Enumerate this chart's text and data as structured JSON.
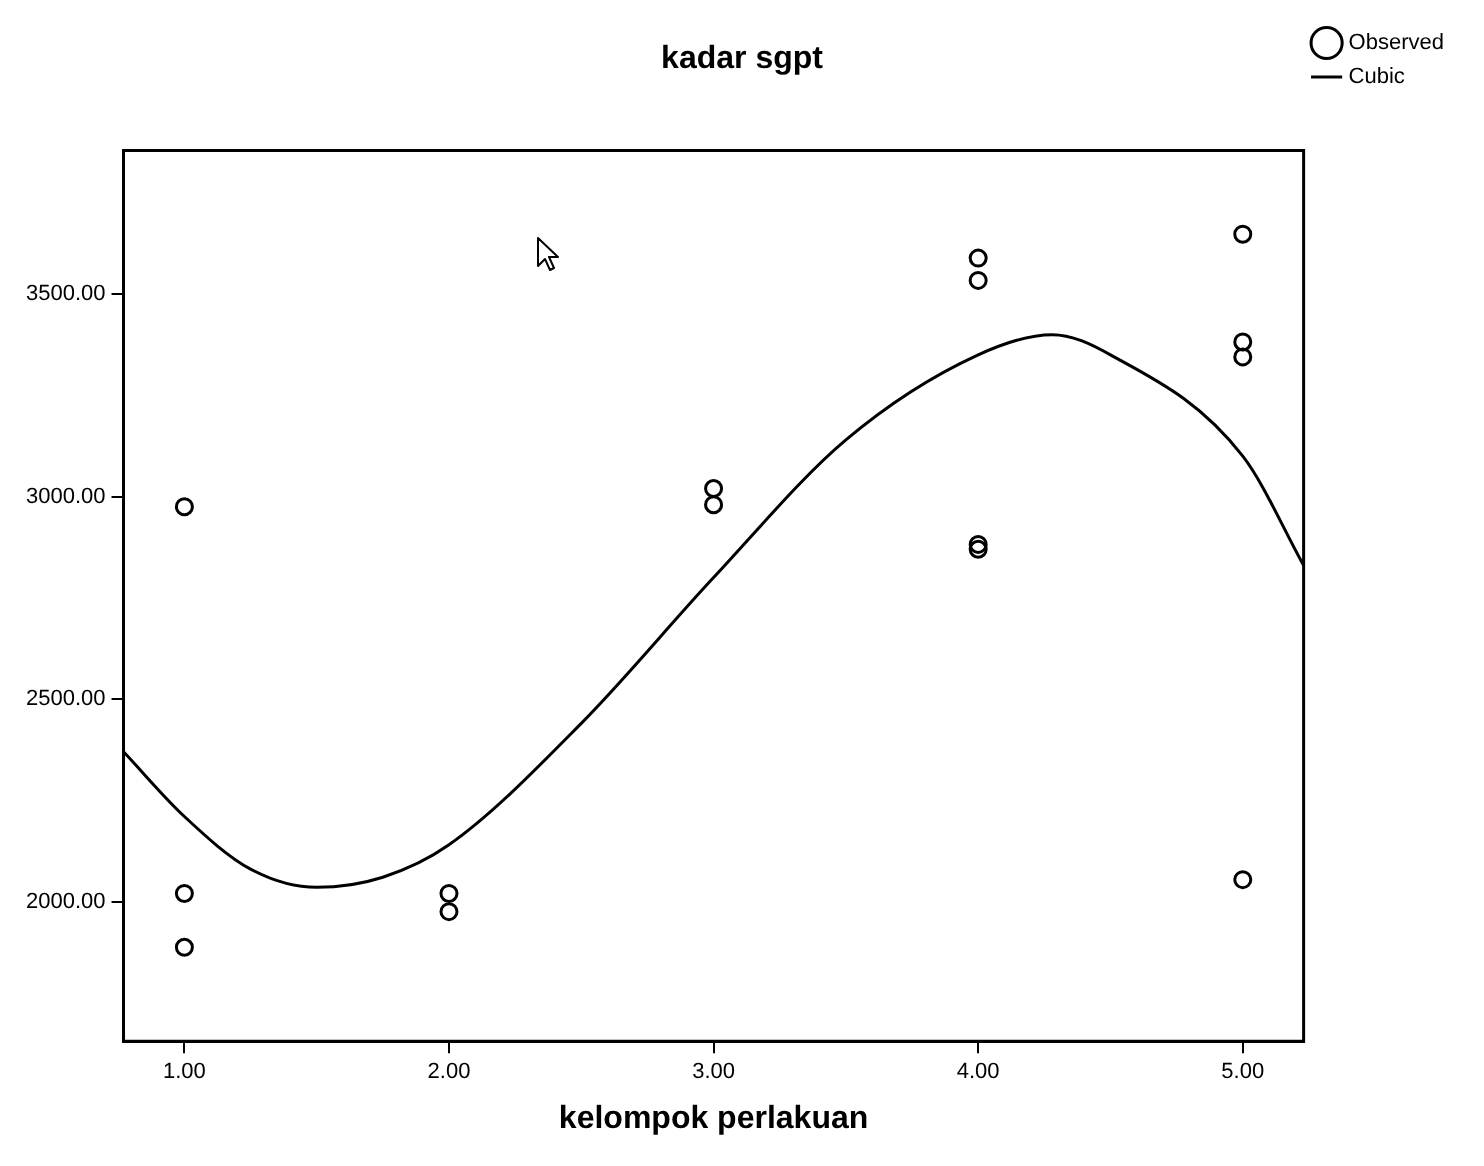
{
  "chart_data": {
    "type": "scatter",
    "title": "kadar sgpt",
    "xlabel": "kelompok perlakuan",
    "xlim": [
      0.77,
      5.23
    ],
    "ylim": [
      1655,
      3855
    ],
    "xticks": [
      {
        "value": 1,
        "label": "1.00"
      },
      {
        "value": 2,
        "label": "2.00"
      },
      {
        "value": 3,
        "label": "3.00"
      },
      {
        "value": 4,
        "label": "4.00"
      },
      {
        "value": 5,
        "label": "5.00"
      }
    ],
    "yticks": [
      {
        "value": 2000,
        "label": "2000.00"
      },
      {
        "value": 2500,
        "label": "2500.00"
      },
      {
        "value": 3000,
        "label": "3000.00"
      },
      {
        "value": 3500,
        "label": "3500.00"
      }
    ],
    "grid": false,
    "legend": "top right",
    "series": [
      {
        "name": "Observed",
        "marker": "circle",
        "color": "#000000",
        "x": [
          1,
          1,
          1,
          2,
          2,
          3,
          3,
          4,
          4,
          4,
          4,
          5,
          5,
          5,
          5
        ],
        "values": [
          2975,
          2020,
          1887,
          2020,
          1975,
          3020,
          2980,
          3589,
          3534,
          2882,
          2870,
          3648,
          3382,
          3345,
          2054
        ]
      },
      {
        "name": "Cubic",
        "type": "line",
        "color": "#000000",
        "line_style": "solid",
        "marker": "none",
        "x": [
          0.77,
          1.0,
          1.25,
          1.5,
          1.75,
          2.0,
          2.5,
          3.0,
          3.5,
          4.0,
          4.28,
          4.5,
          5.0,
          5.23
        ],
        "values": [
          2370,
          2210,
          2080,
          2035,
          2060,
          2140,
          2440,
          2800,
          3140,
          3350,
          3400,
          3350,
          3100,
          2830
        ]
      }
    ]
  }
}
